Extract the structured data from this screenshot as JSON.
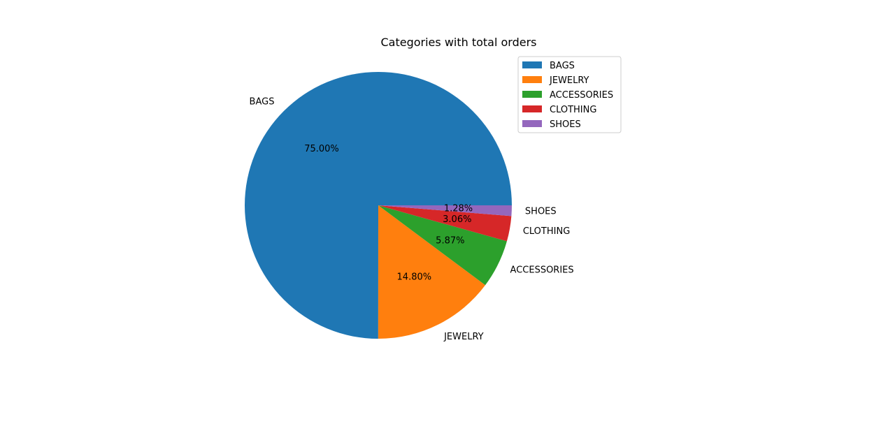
{
  "chart_data": {
    "type": "pie",
    "title": "Categories with total orders",
    "labels": [
      "BAGS",
      "JEWELRY",
      "ACCESSORIES",
      "CLOTHING",
      "SHOES"
    ],
    "values": [
      75.0,
      14.8,
      5.87,
      3.06,
      1.28
    ],
    "percent_labels": [
      "75.00%",
      "14.80%",
      "5.87%",
      "3.06%",
      "1.28%"
    ],
    "colors": [
      "#1f77b4",
      "#ff7f0e",
      "#2ca02c",
      "#d62728",
      "#9467bd"
    ],
    "start_angle_deg": 0,
    "direction": "counterclockwise",
    "legend": {
      "placement": "upper-right",
      "entries": [
        "BAGS",
        "JEWELRY",
        "ACCESSORIES",
        "CLOTHING",
        "SHOES"
      ]
    }
  }
}
